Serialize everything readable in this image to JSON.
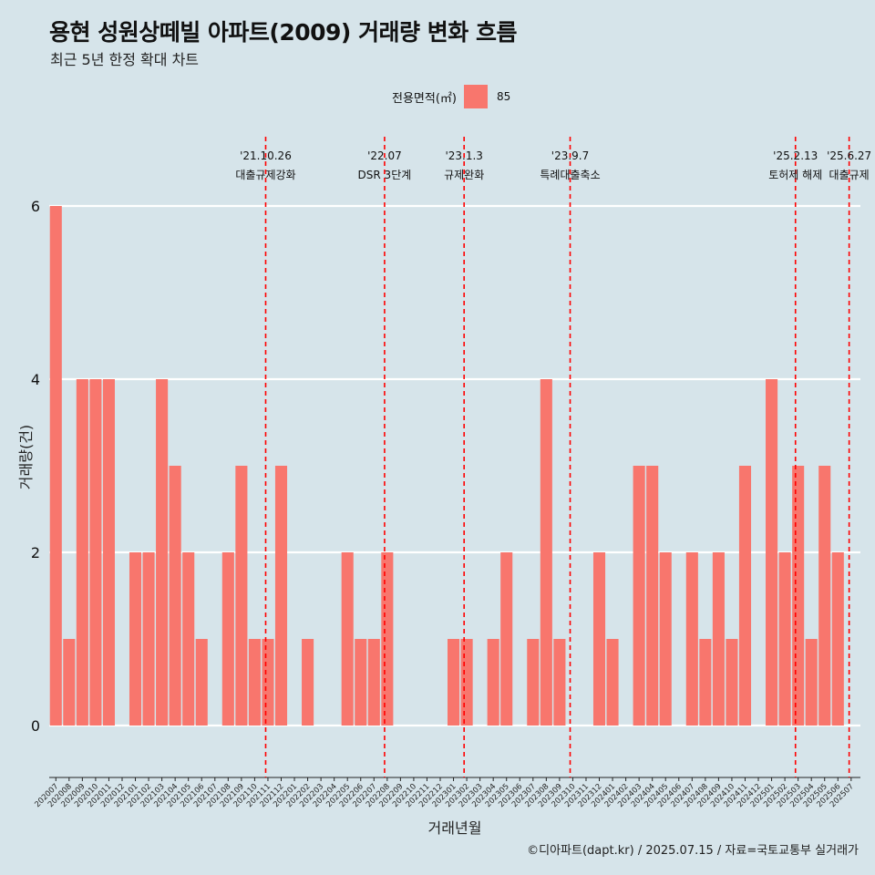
{
  "header": {
    "title": "용현 성원상떼빌 아파트(2009) 거래량 변화 흐름",
    "subtitle": "최근 5년 한정 확대 차트"
  },
  "legend": {
    "title": "전용면적(㎡)",
    "items": [
      {
        "label": "85",
        "color": "#f8766d"
      }
    ]
  },
  "caption": "©디아파트(dapt.kr) / 2025.07.15 / 자료=국토교통부 실거래가",
  "chart_data": {
    "type": "bar",
    "xlabel": "거래년월",
    "ylabel": "거래량(건)",
    "ylim": [
      -0.6,
      6.8
    ],
    "yticks": [
      "0",
      "2",
      "4",
      "6"
    ],
    "ytick_values": [
      0,
      2,
      4,
      6
    ],
    "grid": true,
    "legend_position": "top",
    "bar_color": "#f8766d",
    "categories": [
      "202007",
      "202008",
      "202009",
      "202010",
      "202011",
      "202012",
      "202101",
      "202102",
      "202103",
      "202104",
      "202105",
      "202106",
      "202107",
      "202108",
      "202109",
      "202110",
      "202111",
      "202112",
      "202201",
      "202202",
      "202203",
      "202204",
      "202205",
      "202206",
      "202207",
      "202208",
      "202209",
      "202210",
      "202211",
      "202212",
      "202301",
      "202302",
      "202303",
      "202304",
      "202305",
      "202306",
      "202307",
      "202308",
      "202309",
      "202310",
      "202311",
      "202312",
      "202401",
      "202402",
      "202403",
      "202404",
      "202405",
      "202406",
      "202407",
      "202408",
      "202409",
      "202410",
      "202411",
      "202412",
      "202501",
      "202502",
      "202503",
      "202504",
      "202505",
      "202506",
      "202507"
    ],
    "values": [
      6,
      1,
      4,
      4,
      4,
      0,
      2,
      2,
      4,
      3,
      2,
      1,
      0,
      2,
      3,
      1,
      1,
      3,
      0,
      1,
      0,
      0,
      2,
      1,
      1,
      2,
      0,
      0,
      0,
      0,
      1,
      1,
      0,
      1,
      2,
      0,
      1,
      4,
      1,
      0,
      0,
      2,
      1,
      0,
      3,
      3,
      2,
      0,
      2,
      1,
      2,
      1,
      3,
      0,
      4,
      2,
      3,
      1,
      3,
      2,
      0
    ],
    "annotations": [
      {
        "date": "'21.10.26",
        "label": "대출규제강화",
        "x_index": 15.83
      },
      {
        "date": "'22.07",
        "label": "DSR 3단계",
        "x_index": 24.8
      },
      {
        "date": "'23.1.3",
        "label": "규제완화",
        "x_index": 30.8
      },
      {
        "date": "'23.9.7",
        "label": "특례대출축소",
        "x_index": 38.8
      },
      {
        "date": "'25.2.13",
        "label": "토허제 해제",
        "x_index": 55.8
      },
      {
        "date": "'25.6.27",
        "label": "대출규제",
        "x_index": 59.85
      }
    ]
  }
}
